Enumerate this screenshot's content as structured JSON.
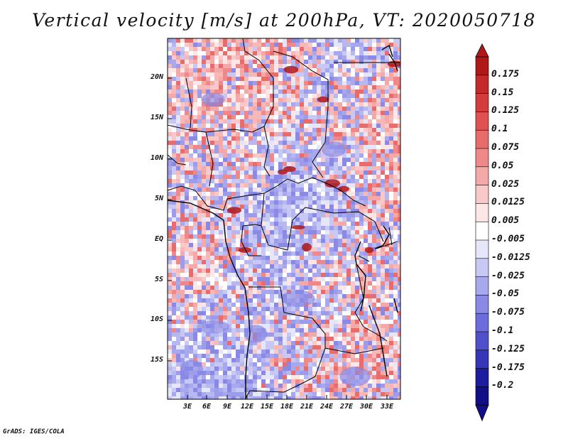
{
  "title": "Vertical velocity [m/s] at 200hPa, VT: 2020050718",
  "credit": "GrADS: IGES/COLA",
  "map": {
    "lat_labels": [
      "20N",
      "15N",
      "10N",
      "5N",
      "EQ",
      "5S",
      "10S",
      "15S"
    ],
    "lon_labels": [
      "3E",
      "6E",
      "9E",
      "12E",
      "15E",
      "18E",
      "21E",
      "24E",
      "27E",
      "30E",
      "33E"
    ]
  },
  "colorbar": {
    "labels": [
      "0.175",
      "0.15",
      "0.125",
      "0.1",
      "0.075",
      "0.05",
      "0.025",
      "0.0125",
      "0.005",
      "-0.005",
      "-0.0125",
      "-0.025",
      "-0.05",
      "-0.075",
      "-0.1",
      "-0.125",
      "-0.175",
      "-0.2"
    ],
    "colors": [
      "#b01818",
      "#c42a2a",
      "#d43c3c",
      "#e05252",
      "#e86c6c",
      "#ef8888",
      "#f5a8a8",
      "#f9c8c8",
      "#fce6e6",
      "#ffffff",
      "#e6e6fb",
      "#c8c8f4",
      "#a8a8ee",
      "#8a8ae6",
      "#6c6cdc",
      "#5050cc",
      "#3636b8",
      "#1c1ca0",
      "#120e88"
    ]
  },
  "colors": {
    "background": "#ffffff",
    "map_base": "#f2d4d4",
    "border": "#000000"
  }
}
